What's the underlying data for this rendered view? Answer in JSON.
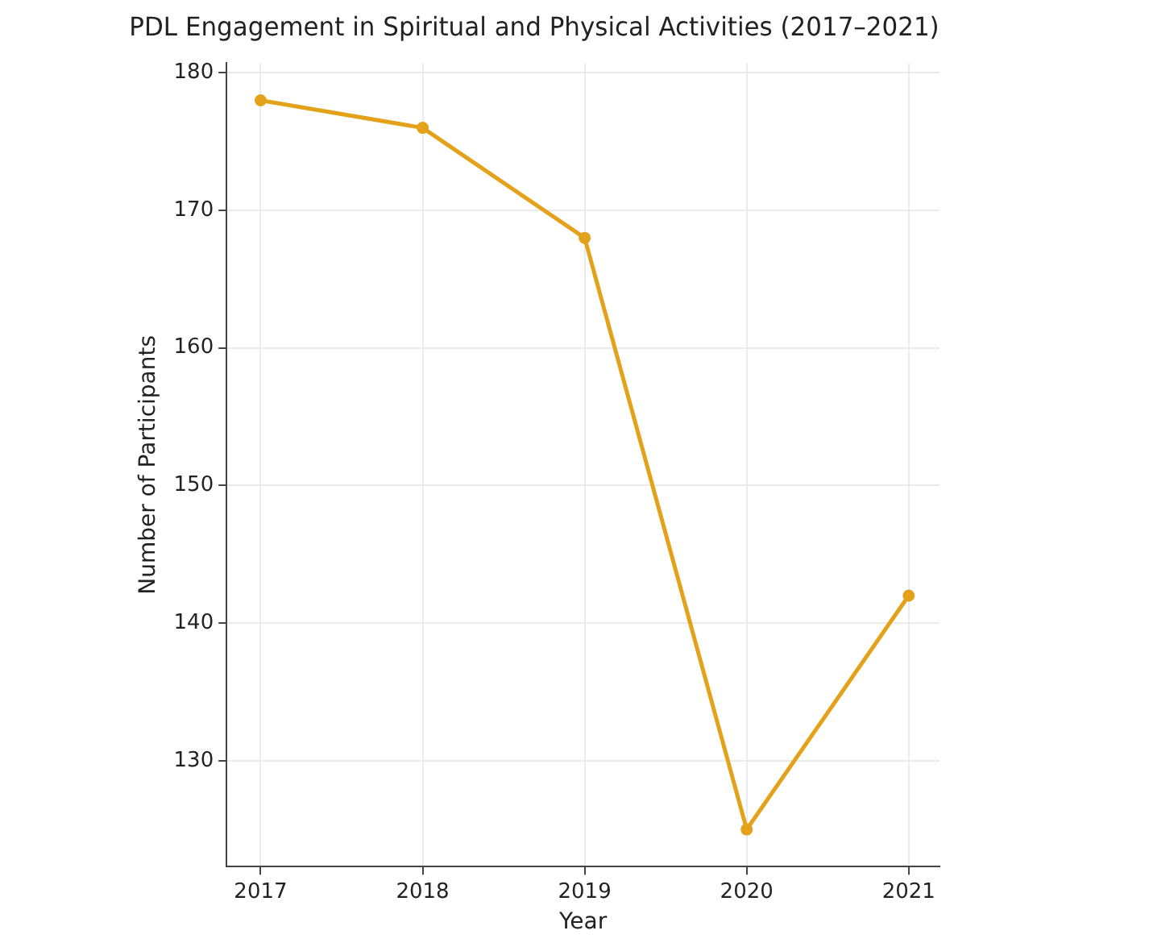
{
  "chart_data": {
    "type": "line",
    "title": "PDL Engagement in Spiritual and Physical Activities (2017–2021)",
    "xlabel": "Year",
    "ylabel": "Number of Participants",
    "x": [
      2017,
      2018,
      2019,
      2020,
      2021
    ],
    "series": [
      {
        "color": "#e3a21a",
        "values": [
          178,
          176,
          168,
          125,
          142
        ]
      }
    ],
    "xlim": [
      2016.79,
      2021.19
    ],
    "xticks": [
      2017,
      2018,
      2019,
      2020,
      2021
    ],
    "ylim": [
      122.3,
      180.7
    ],
    "yticks": [
      130,
      140,
      150,
      160,
      170,
      180
    ],
    "grid": true,
    "marker": "circle",
    "line_style": "solid"
  }
}
